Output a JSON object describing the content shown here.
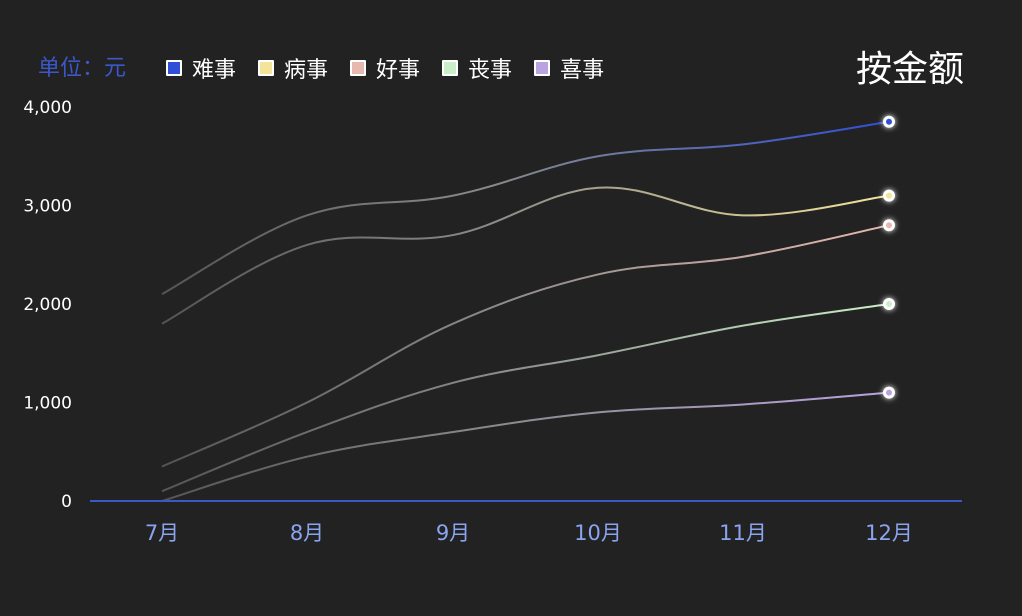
{
  "chart_data": {
    "type": "line",
    "title": "按金额",
    "unit": "单位：元",
    "categories": [
      "7月",
      "8月",
      "9月",
      "10月",
      "11月",
      "12月"
    ],
    "y_ticks": [
      "0",
      "1,000",
      "2,000",
      "3,000",
      "4,000"
    ],
    "ylim": [
      0,
      4000
    ],
    "series": [
      {
        "name": "难事",
        "color": "#2f4fd6",
        "values": [
          2100,
          2900,
          3100,
          3500,
          3620,
          3850
        ]
      },
      {
        "name": "病事",
        "color": "#f3e49a",
        "values": [
          1800,
          2600,
          2700,
          3180,
          2900,
          3100
        ]
      },
      {
        "name": "好事",
        "color": "#e6b8b0",
        "values": [
          350,
          1000,
          1800,
          2300,
          2480,
          2800
        ]
      },
      {
        "name": "丧事",
        "color": "#c9efc9",
        "values": [
          100,
          700,
          1200,
          1480,
          1780,
          2000
        ]
      },
      {
        "name": "喜事",
        "color": "#b9a3e0",
        "values": [
          0,
          450,
          700,
          900,
          980,
          1100
        ]
      }
    ],
    "axis_color": "#3a58c9",
    "tick_label_color": "#8aa4f0",
    "grid": false,
    "legend_position": "top"
  }
}
